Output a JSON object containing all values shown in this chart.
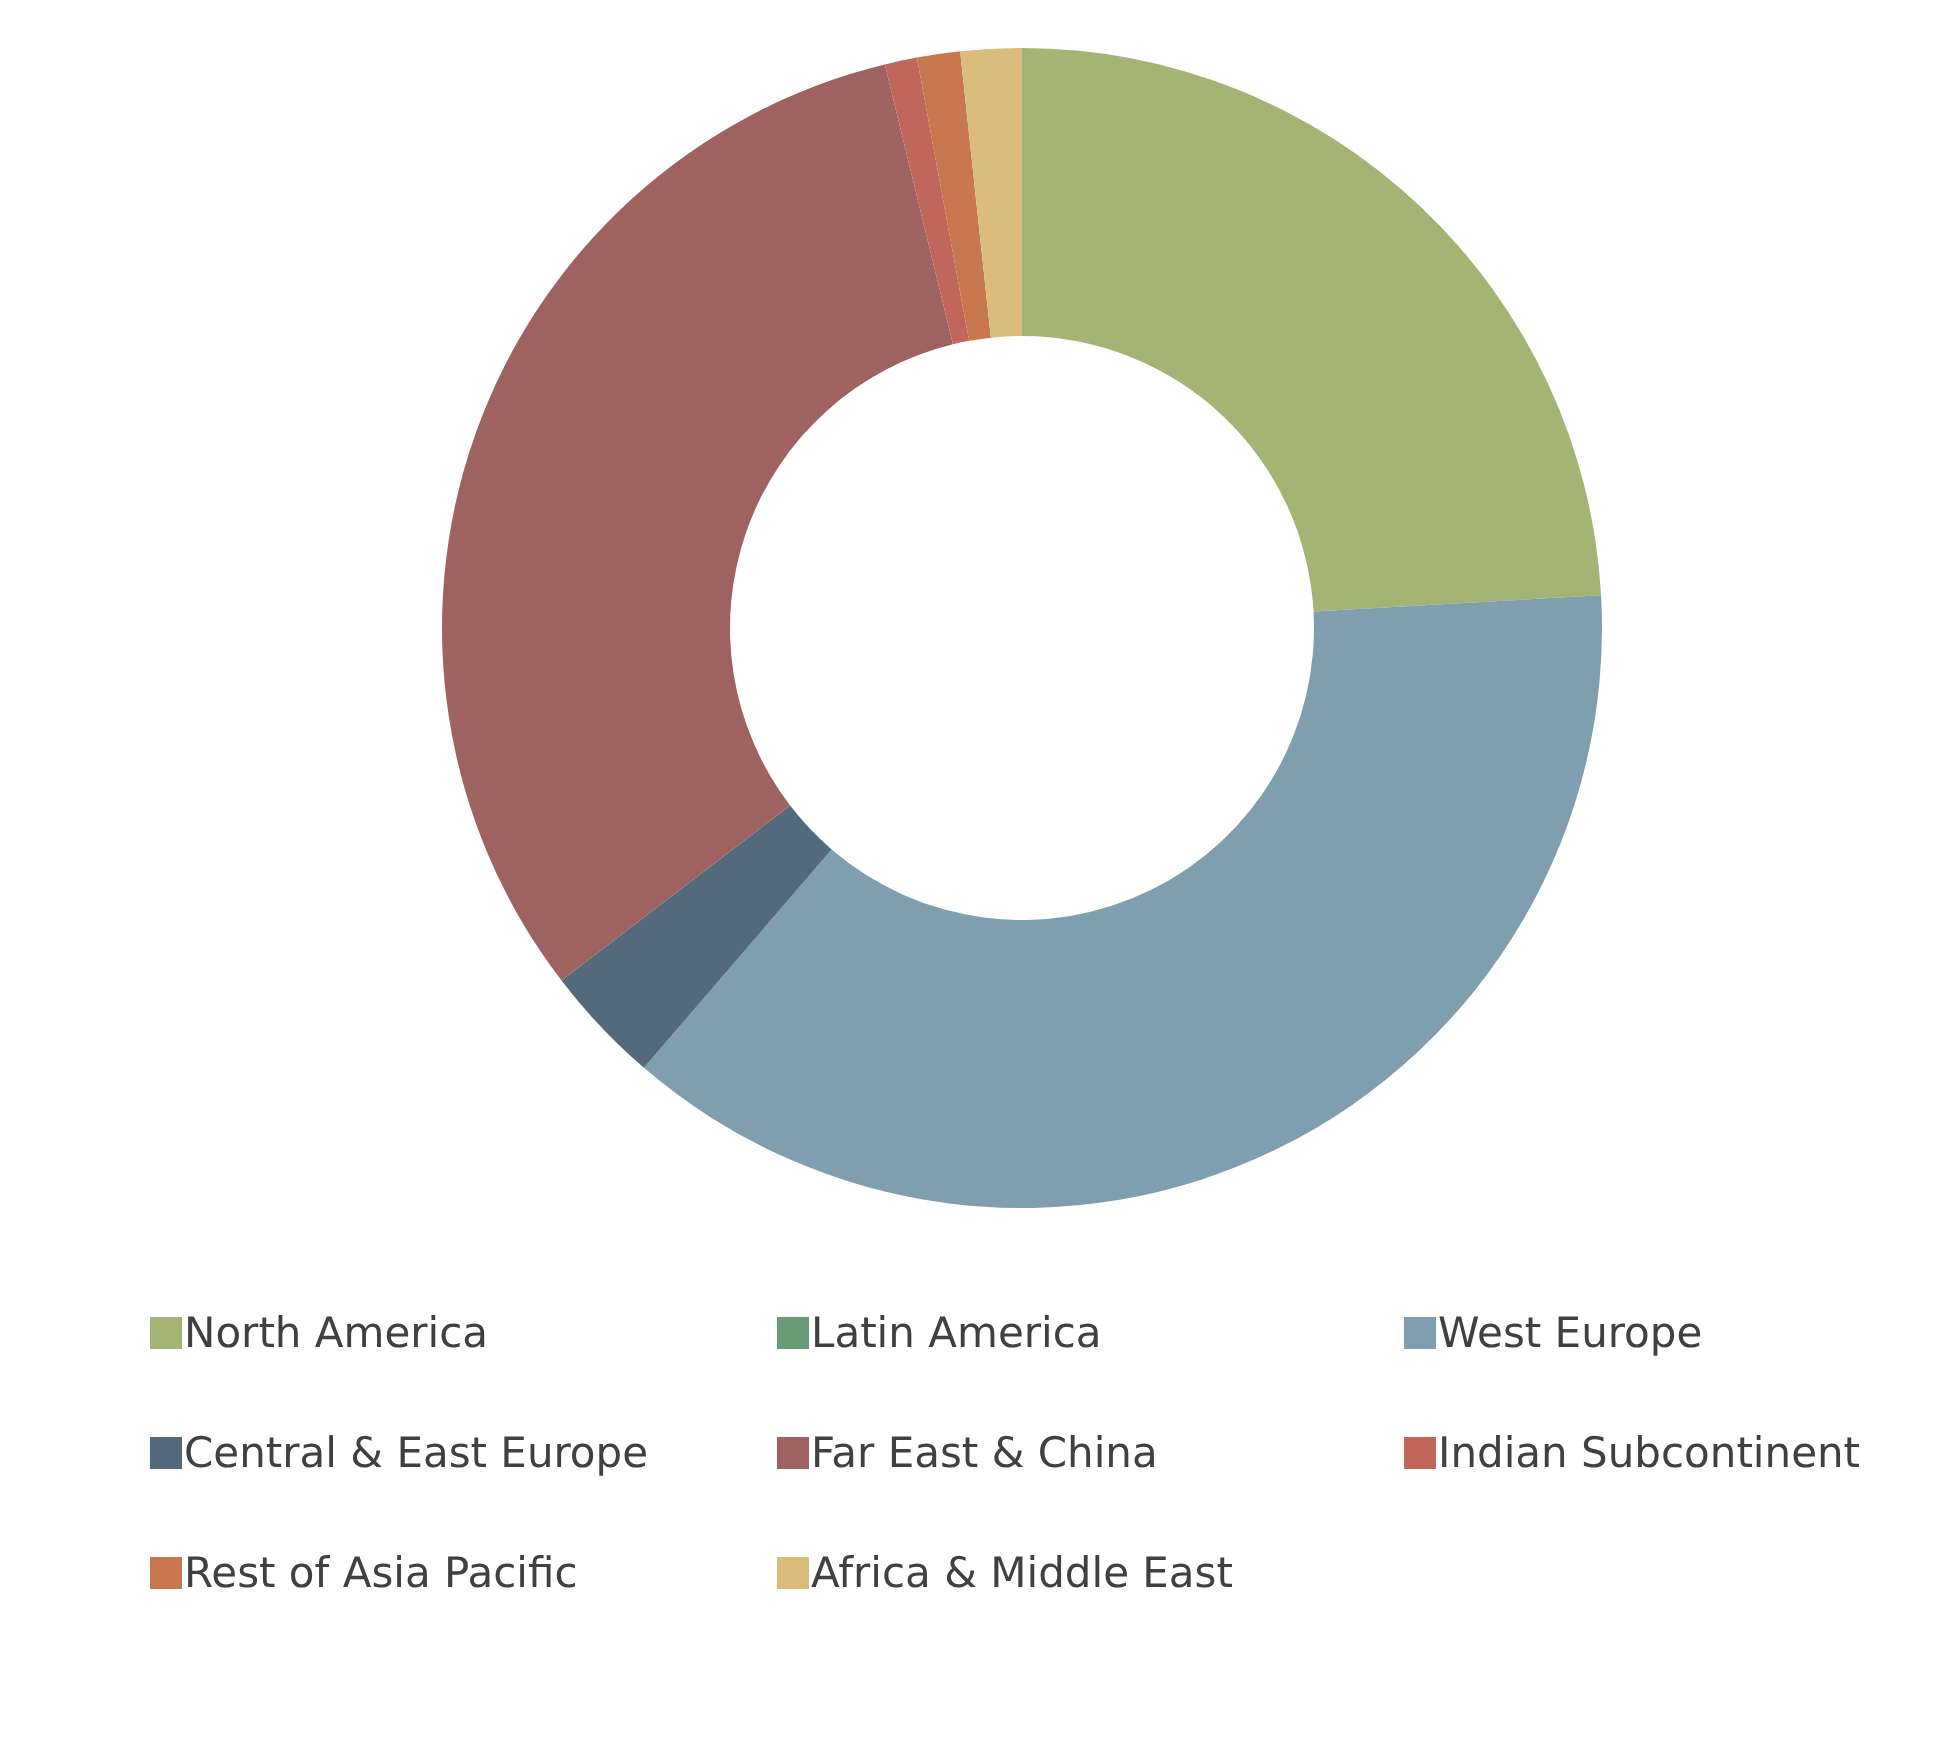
{
  "chart_data": {
    "type": "donut",
    "categories": [
      "North America",
      "Latin America",
      "West Europe",
      "Central & East Europe",
      "Far East & China",
      "Indian Subcontinent",
      "Rest of Asia Pacific",
      "Africa & Middle East"
    ],
    "values": [
      24.1,
      0,
      37.2,
      3.3,
      31.6,
      0.9,
      1.2,
      1.7
    ],
    "colors": [
      "#a4b475",
      "#6a9a76",
      "#7f9fae",
      "#53697c",
      "#9e6261",
      "#c0665a",
      "#c7784e",
      "#dabd7c"
    ],
    "legend": "bottom"
  }
}
